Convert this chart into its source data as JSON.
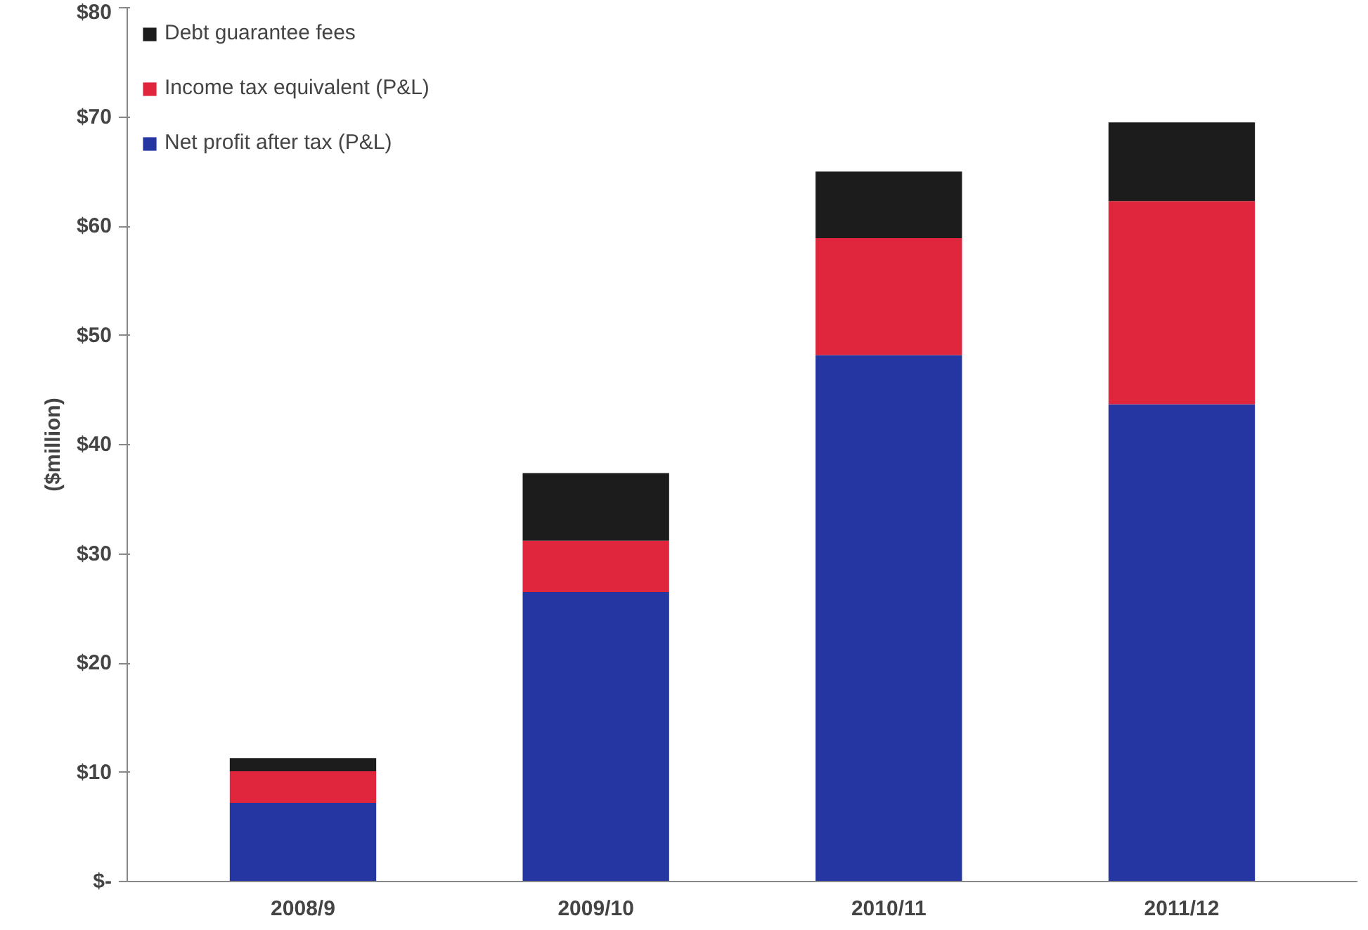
{
  "chart_data": {
    "type": "bar",
    "stacked": true,
    "ylabel": "($million)",
    "categories": [
      "2008/9",
      "2009/10",
      "2010/11",
      "2011/12"
    ],
    "series": [
      {
        "name": "Net profit after tax (P&L)",
        "color": "#2536a3",
        "values": [
          7.2,
          26.5,
          48.2,
          43.7
        ]
      },
      {
        "name": "Income tax equivalent (P&L)",
        "color": "#e0263c",
        "values": [
          2.9,
          4.7,
          10.7,
          18.6
        ]
      },
      {
        "name": "Debt guarantee fees",
        "color": "#1c1c1c",
        "values": [
          1.2,
          6.2,
          6.1,
          7.2
        ]
      }
    ],
    "ylim": [
      0,
      80
    ],
    "yticks": [
      {
        "value": 0,
        "label": "$-"
      },
      {
        "value": 10,
        "label": "$10"
      },
      {
        "value": 20,
        "label": "$20"
      },
      {
        "value": 30,
        "label": "$30"
      },
      {
        "value": 40,
        "label": "$40"
      },
      {
        "value": 50,
        "label": "$50"
      },
      {
        "value": 60,
        "label": "$60"
      },
      {
        "value": 70,
        "label": "$70"
      },
      {
        "value": 80,
        "label": "$80"
      }
    ],
    "grid": false,
    "legend": "top left"
  }
}
